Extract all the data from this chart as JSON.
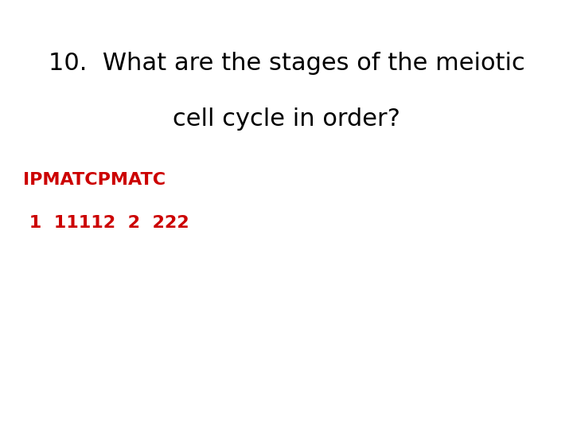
{
  "title_line1": "10.  What are the stages of the meiotic",
  "title_line2": "cell cycle in order?",
  "answer_line1": "IPMATCPMATC",
  "answer_line2": " 1  11112  2  222",
  "title_color": "#000000",
  "answer_color": "#cc0000",
  "background_color": "#ffffff",
  "title_fontsize": 22,
  "answer_fontsize": 16
}
